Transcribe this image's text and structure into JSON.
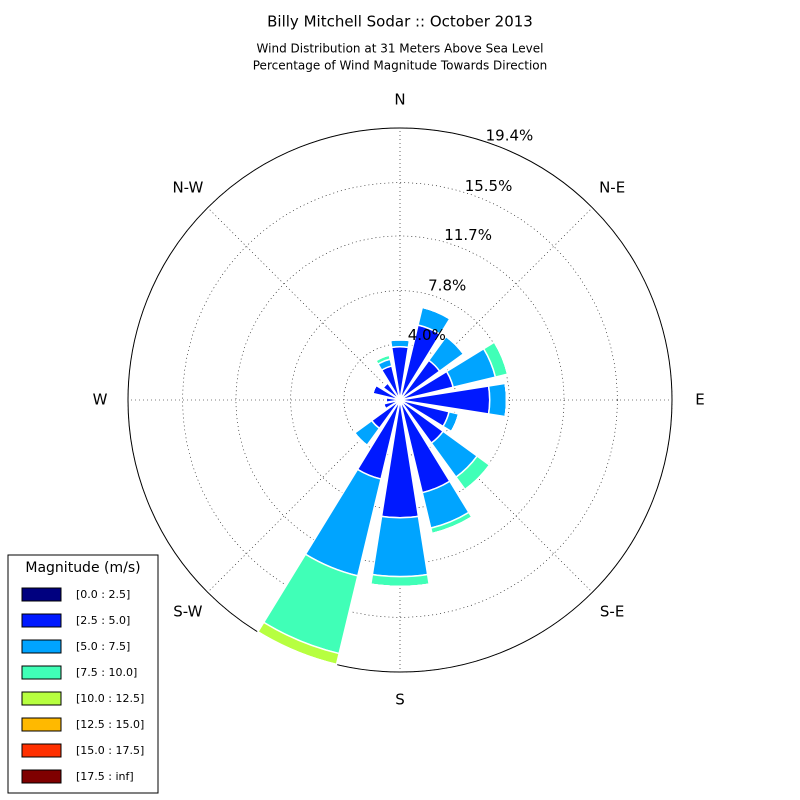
{
  "chart_data": {
    "type": "windrose",
    "title": "Billy Mitchell Sodar :: October 2013",
    "subtitle": [
      "Wind Distribution at 31 Meters Above Sea Level",
      "Percentage of Wind Magnitude Towards Direction"
    ],
    "categories": [
      "N",
      null,
      "N-E",
      null,
      "E",
      null,
      "S-E",
      null,
      "S",
      null,
      "S-W",
      null,
      "W",
      null,
      "N-W",
      null
    ],
    "rlim": [
      0,
      19.4
    ],
    "rticks": [
      {
        "value": 4.0,
        "label": "4.0%"
      },
      {
        "value": 7.8,
        "label": "7.8%"
      },
      {
        "value": 11.7,
        "label": "11.7%"
      },
      {
        "value": 15.5,
        "label": "15.5%"
      },
      {
        "value": 19.4,
        "label": "19.4%"
      }
    ],
    "legend_title": "Magnitude (m/s)",
    "legend_position": "lower left",
    "series": [
      {
        "name": "[0.0 : 2.5]",
        "color": "#00007f",
        "values": [
          0.2,
          0.2,
          0.2,
          0.2,
          0.2,
          0.2,
          0.2,
          0.2,
          0.2,
          0.2,
          0.2,
          0.2,
          0.2,
          0.2,
          0.2,
          0.2
        ]
      },
      {
        "name": "[2.5 : 5.0]",
        "color": "#0019ff",
        "values": [
          3.6,
          5.3,
          3.3,
          3.7,
          6.2,
          3.4,
          3.6,
          6.6,
          8.2,
          5.6,
          2.3,
          1.0,
          0.8,
          1.8,
          1.3,
          2.3
        ]
      },
      {
        "name": "[5.0 : 7.5]",
        "color": "#00a4ff",
        "values": [
          0.5,
          1.3,
          2.1,
          3.1,
          1.2,
          0.7,
          3.0,
          2.6,
          4.2,
          7.1,
          1.5,
          0,
          0,
          0,
          0,
          0.5
        ]
      },
      {
        "name": "[7.5 : 10.0]",
        "color": "#40ffb7",
        "values": [
          0,
          0,
          0,
          0.9,
          0,
          0,
          1.1,
          0.4,
          0.7,
          5.7,
          0,
          0,
          0,
          0,
          0,
          0.3
        ]
      },
      {
        "name": "[10.0 : 12.5]",
        "color": "#b7ff40",
        "values": [
          0,
          0,
          0,
          0,
          0,
          0,
          0,
          0,
          0,
          0.8,
          0,
          0,
          0,
          0,
          0,
          0
        ]
      },
      {
        "name": "[12.5 : 15.0]",
        "color": "#ffb900",
        "values": [
          0,
          0,
          0,
          0,
          0,
          0,
          0,
          0,
          0,
          0,
          0,
          0,
          0,
          0,
          0,
          0
        ]
      },
      {
        "name": "[15.0 : 17.5]",
        "color": "#ff3000",
        "values": [
          0,
          0,
          0,
          0,
          0,
          0,
          0,
          0,
          0,
          0,
          0,
          0,
          0,
          0,
          0,
          0
        ]
      },
      {
        "name": "[17.5 : inf]",
        "color": "#7f0000",
        "values": [
          0,
          0,
          0,
          0,
          0,
          0,
          0,
          0,
          0,
          0,
          0,
          0,
          0,
          0,
          0,
          0
        ]
      }
    ]
  }
}
